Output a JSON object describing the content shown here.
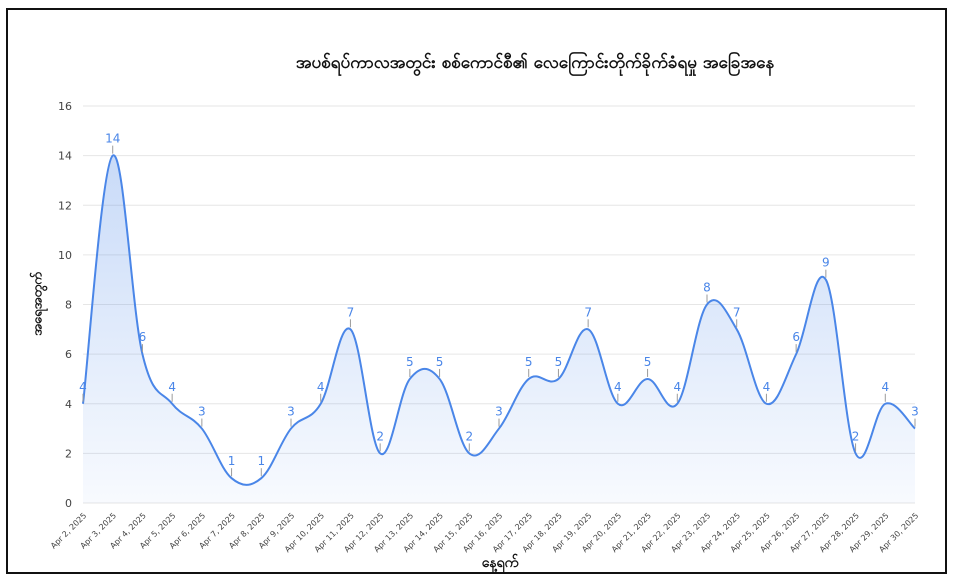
{
  "chart_data": {
    "type": "area",
    "title": "အပစ်ရပ်ကာလအတွင်း စစ်ကောင်စီ၏ လေကြောင်းတိုက်ခိုက်ခံရမှု အခြေအနေ",
    "xlabel": "နေ့ရက်",
    "ylabel": "အရေအတွက်",
    "ylim": [
      0,
      16
    ],
    "yticks": [
      0,
      2,
      4,
      6,
      8,
      10,
      12,
      14,
      16
    ],
    "grid": true,
    "legend": "none",
    "categories": [
      "Apr 2, 2025",
      "Apr 3, 2025",
      "Apr 4, 2025",
      "Apr 5, 2025",
      "Apr 6, 2025",
      "Apr 7, 2025",
      "Apr 8, 2025",
      "Apr 9, 2025",
      "Apr 10, 2025",
      "Apr 11, 2025",
      "Apr 12, 2025",
      "Apr 13, 2025",
      "Apr 14, 2025",
      "Apr 15, 2025",
      "Apr 16, 2025",
      "Apr 17, 2025",
      "Apr 18, 2025",
      "Apr 19, 2025",
      "Apr 20, 2025",
      "Apr 21, 2025",
      "Apr 22, 2025",
      "Apr 23, 2025",
      "Apr 24, 2025",
      "Apr 25, 2025",
      "Apr 26, 2025",
      "Apr 27, 2025",
      "Apr 28, 2025",
      "Apr 29, 2025",
      "Apr 30, 2025"
    ],
    "series": [
      {
        "values": [
          4,
          14,
          6,
          4,
          3,
          1,
          1,
          3,
          4,
          7,
          2,
          5,
          5,
          2,
          3,
          5,
          5,
          7,
          4,
          5,
          4,
          8,
          7,
          4,
          6,
          9,
          2,
          4,
          3
        ]
      }
    ],
    "colors": {
      "line": "#4a86e8",
      "fill": "#4a86e8",
      "label": "#4a86e8",
      "grid": "#e6e6e6",
      "axis": "#333333"
    }
  }
}
